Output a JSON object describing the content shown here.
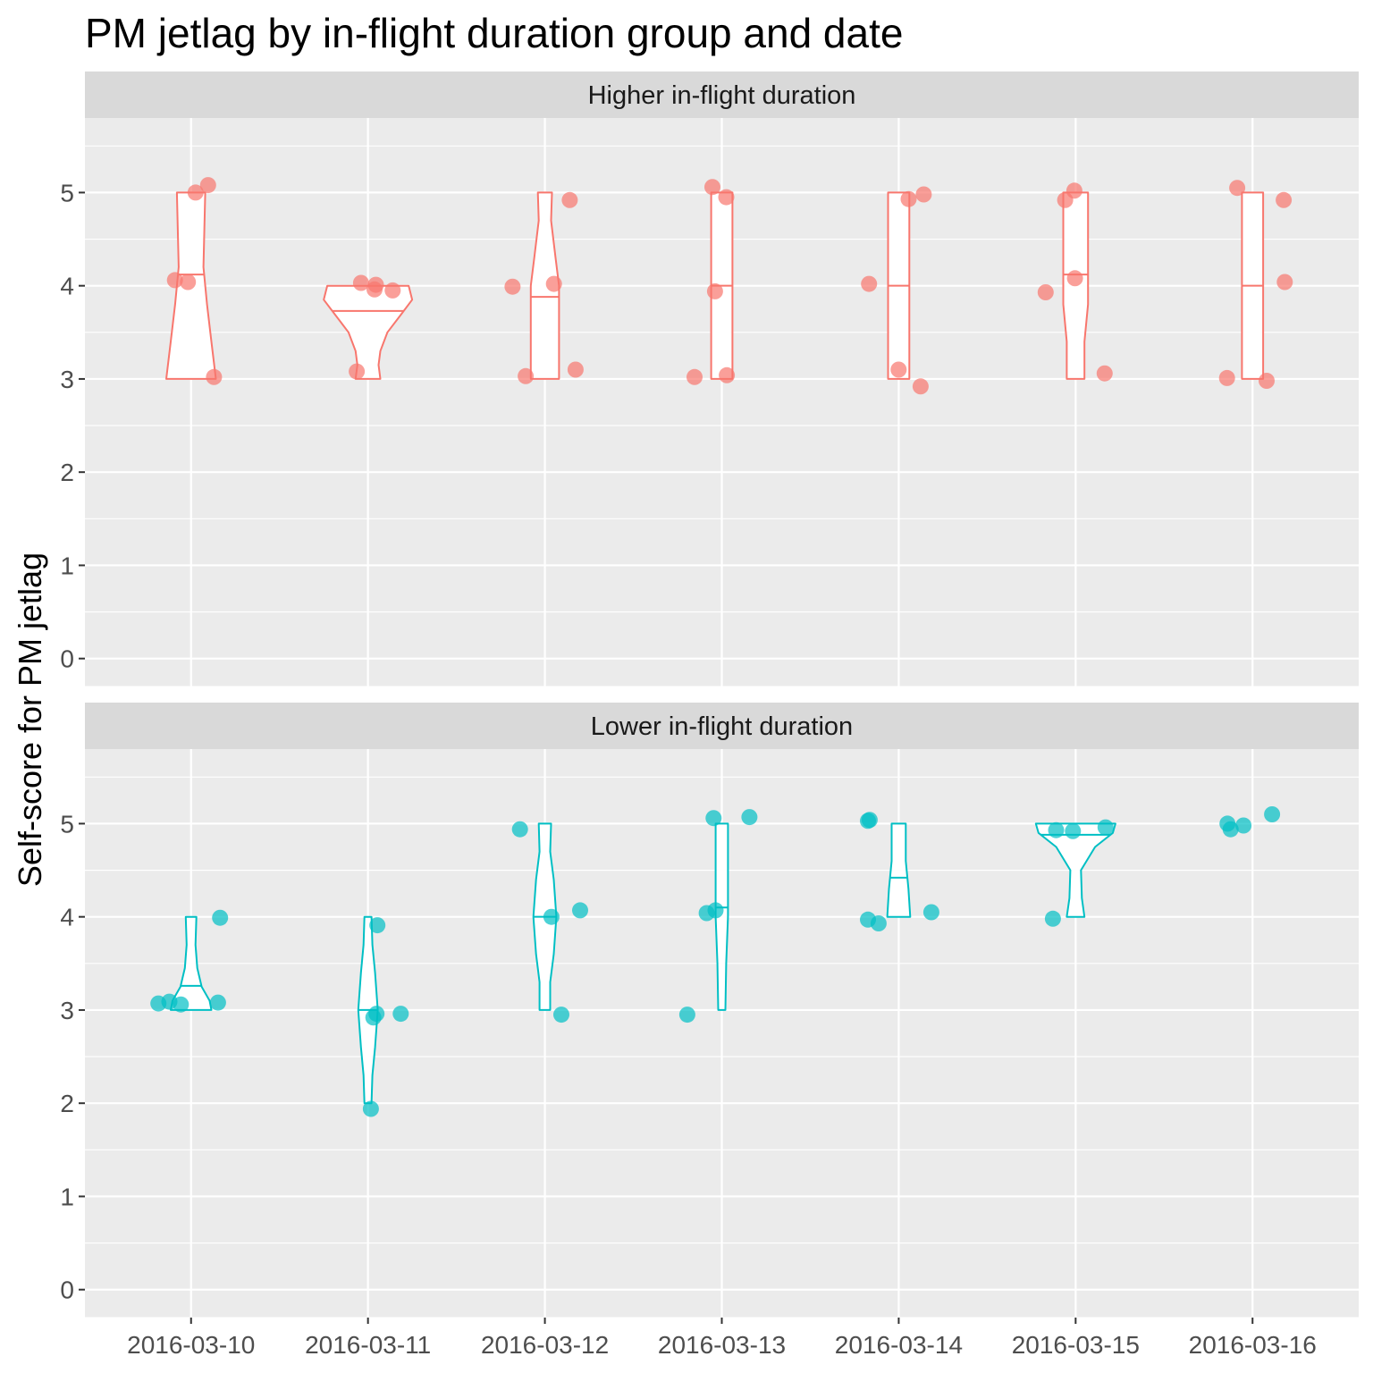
{
  "chart_data": {
    "type": "violin",
    "title": "PM jetlag by in-flight duration group and date",
    "xlabel": "",
    "ylabel": "Self-score for PM jetlag",
    "categories": [
      "2016-03-10",
      "2016-03-11",
      "2016-03-12",
      "2016-03-13",
      "2016-03-14",
      "2016-03-15",
      "2016-03-16"
    ],
    "y_ticks": [
      0,
      1,
      2,
      3,
      4,
      5
    ],
    "ylim": [
      -0.3,
      5.8
    ],
    "grid": true,
    "legend": "none",
    "panels": [
      {
        "name": "Higher in-flight duration",
        "color": "#F8766D",
        "groups": [
          {
            "date": "2016-03-10",
            "median": 4.12,
            "points": [
              5.08,
              5.0,
              4.04,
              4.06,
              3.02
            ],
            "profile": [
              [
                3.0,
                0.28
              ],
              [
                3.4,
                0.23
              ],
              [
                3.8,
                0.18
              ],
              [
                4.2,
                0.14
              ],
              [
                4.6,
                0.15
              ],
              [
                5.0,
                0.16
              ]
            ]
          },
          {
            "date": "2016-03-11",
            "median": 3.73,
            "points": [
              3.96,
              4.01,
              4.03,
              3.95,
              3.08
            ],
            "profile": [
              [
                3.0,
                0.14
              ],
              [
                3.15,
                0.12
              ],
              [
                3.3,
                0.14
              ],
              [
                3.5,
                0.22
              ],
              [
                3.7,
                0.38
              ],
              [
                3.85,
                0.5
              ],
              [
                4.0,
                0.46
              ]
            ]
          },
          {
            "date": "2016-03-12",
            "median": 3.88,
            "points": [
              4.92,
              3.99,
              4.02,
              3.1,
              3.03
            ],
            "profile": [
              [
                3.0,
                0.16
              ],
              [
                3.5,
                0.16
              ],
              [
                4.0,
                0.16
              ],
              [
                4.3,
                0.12
              ],
              [
                4.7,
                0.07
              ],
              [
                5.0,
                0.08
              ]
            ]
          },
          {
            "date": "2016-03-13",
            "median": 4.0,
            "points": [
              4.95,
              5.06,
              3.94,
              3.04,
              3.02
            ],
            "profile": [
              [
                3.0,
                0.12
              ],
              [
                5.0,
                0.12
              ]
            ]
          },
          {
            "date": "2016-03-14",
            "median": 4.0,
            "points": [
              4.98,
              4.93,
              4.02,
              3.1,
              2.92
            ],
            "profile": [
              [
                3.0,
                0.12
              ],
              [
                5.0,
                0.12
              ]
            ]
          },
          {
            "date": "2016-03-15",
            "median": 4.12,
            "points": [
              5.02,
              4.92,
              4.08,
              3.93,
              3.06
            ],
            "profile": [
              [
                3.0,
                0.1
              ],
              [
                3.4,
                0.1
              ],
              [
                3.8,
                0.14
              ],
              [
                4.1,
                0.14
              ],
              [
                4.5,
                0.14
              ],
              [
                5.0,
                0.14
              ]
            ]
          },
          {
            "date": "2016-03-16",
            "median": 4.0,
            "points": [
              5.05,
              4.92,
              4.04,
              3.01,
              2.98
            ],
            "profile": [
              [
                3.0,
                0.12
              ],
              [
                5.0,
                0.12
              ]
            ]
          }
        ]
      },
      {
        "name": "Lower in-flight duration",
        "color": "#00BFC4",
        "groups": [
          {
            "date": "2016-03-10",
            "median": 3.26,
            "points": [
              3.07,
              3.06,
              3.08,
              3.09,
              3.99
            ],
            "profile": [
              [
                3.0,
                0.23
              ],
              [
                3.1,
                0.21
              ],
              [
                3.25,
                0.12
              ],
              [
                3.45,
                0.07
              ],
              [
                3.7,
                0.05
              ],
              [
                4.0,
                0.06
              ]
            ]
          },
          {
            "date": "2016-03-11",
            "median": 3.0,
            "points": [
              2.92,
              1.94,
              3.91,
              2.96,
              2.96
            ],
            "profile": [
              [
                2.0,
                0.04
              ],
              [
                2.3,
                0.05
              ],
              [
                2.6,
                0.08
              ],
              [
                3.0,
                0.11
              ],
              [
                3.4,
                0.08
              ],
              [
                3.7,
                0.05
              ],
              [
                4.0,
                0.04
              ]
            ]
          },
          {
            "date": "2016-03-12",
            "median": 4.0,
            "points": [
              4.94,
              4.07,
              4.0,
              2.95
            ],
            "profile": [
              [
                3.0,
                0.06
              ],
              [
                3.3,
                0.06
              ],
              [
                3.6,
                0.1
              ],
              [
                4.0,
                0.13
              ],
              [
                4.4,
                0.1
              ],
              [
                4.7,
                0.06
              ],
              [
                5.0,
                0.07
              ]
            ]
          },
          {
            "date": "2016-03-13",
            "median": 4.1,
            "points": [
              5.06,
              5.07,
              4.07,
              4.04,
              2.95
            ],
            "profile": [
              [
                3.0,
                0.04
              ],
              [
                3.5,
                0.05
              ],
              [
                4.0,
                0.07
              ],
              [
                4.5,
                0.07
              ],
              [
                5.0,
                0.07
              ]
            ]
          },
          {
            "date": "2016-03-14",
            "median": 4.42,
            "points": [
              5.03,
              5.04,
              4.05,
              3.97,
              3.93
            ],
            "profile": [
              [
                4.0,
                0.13
              ],
              [
                4.3,
                0.11
              ],
              [
                4.6,
                0.08
              ],
              [
                5.0,
                0.08
              ]
            ]
          },
          {
            "date": "2016-03-15",
            "median": 4.88,
            "points": [
              4.96,
              4.92,
              4.93,
              3.98
            ],
            "profile": [
              [
                4.0,
                0.1
              ],
              [
                4.2,
                0.07
              ],
              [
                4.5,
                0.06
              ],
              [
                4.75,
                0.22
              ],
              [
                4.9,
                0.42
              ],
              [
                5.0,
                0.45
              ]
            ]
          },
          {
            "date": "2016-03-16",
            "median": null,
            "points": [
              4.98,
              5.0,
              5.1,
              4.94
            ],
            "profile": []
          }
        ]
      }
    ]
  }
}
